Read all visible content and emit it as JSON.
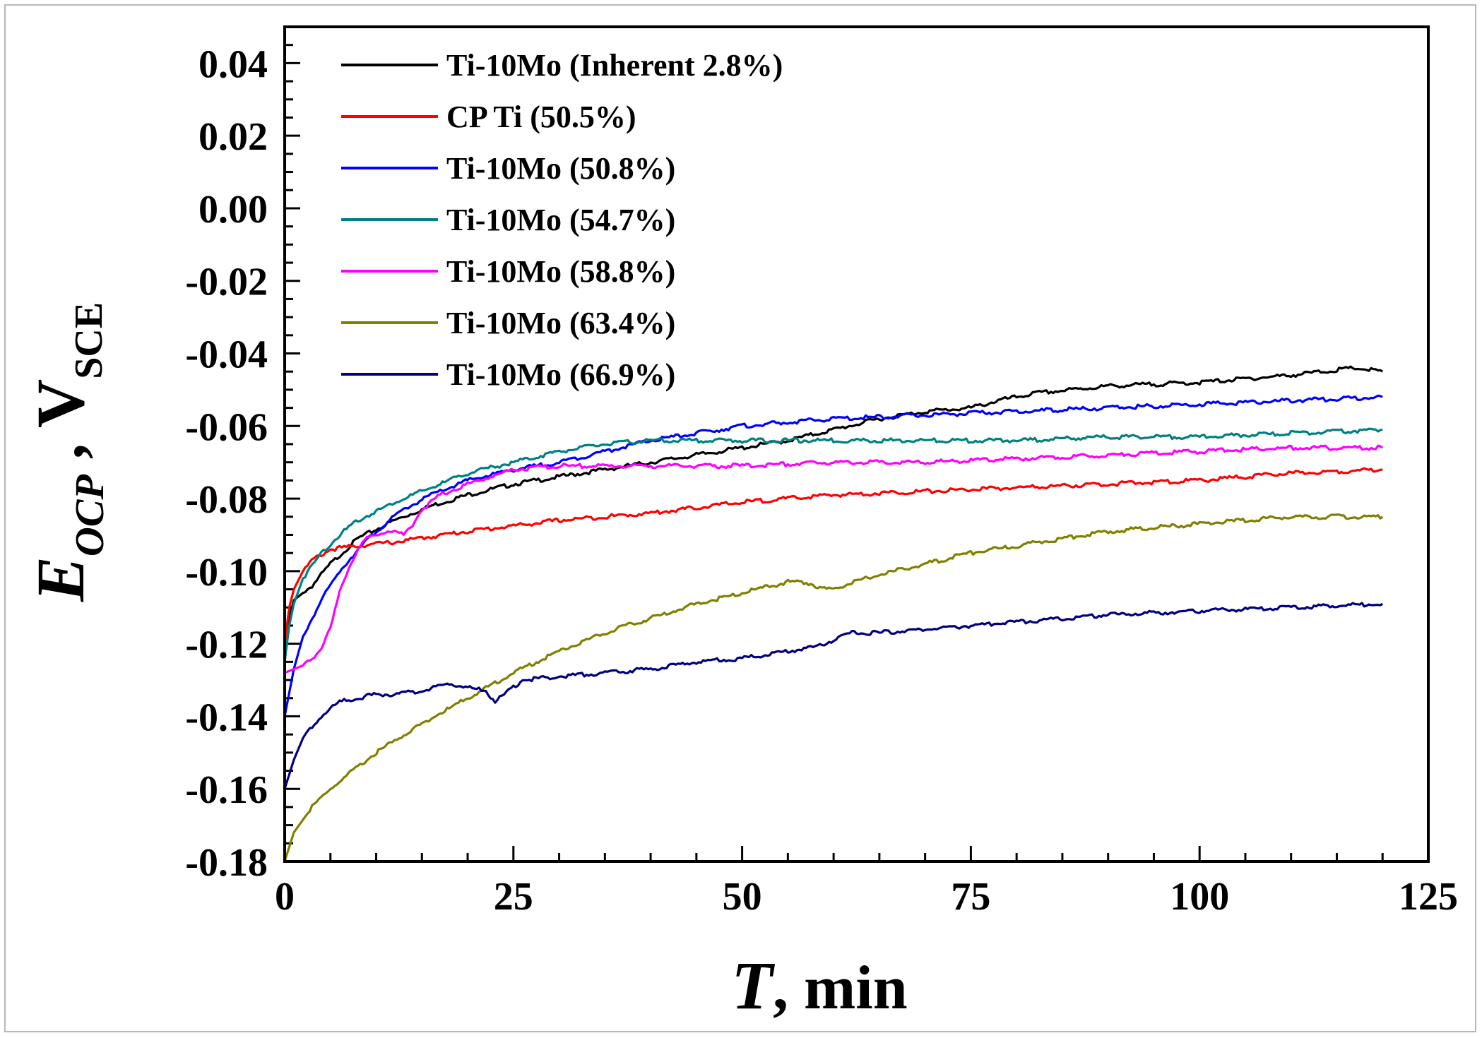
{
  "chart_data": {
    "type": "line",
    "title": "",
    "xlabel": {
      "symbol": "T",
      "rest": ", min"
    },
    "ylabel": {
      "symbol": "E",
      "symbol_sub": "OCP",
      "separator": " , ",
      "unit": "V",
      "unit_sub": "SCE"
    },
    "xlim": [
      0,
      125
    ],
    "ylim": [
      -0.18,
      0.05
    ],
    "x_ticks": [
      0,
      25,
      50,
      75,
      100,
      125
    ],
    "x_tick_labels": [
      "0",
      "25",
      "50",
      "75",
      "100",
      "125"
    ],
    "y_ticks": [
      0.04,
      0.02,
      0.0,
      -0.02,
      -0.04,
      -0.06,
      -0.08,
      -0.1,
      -0.12,
      -0.14,
      -0.16,
      -0.18
    ],
    "y_tick_labels": [
      "0.04",
      "0.02",
      "0.00",
      "-0.02",
      "-0.04",
      "-0.06",
      "-0.08",
      "-0.10",
      "-0.12",
      "-0.14",
      "-0.16",
      "-0.18"
    ],
    "grid": false,
    "legend_position": "top-left",
    "series": [
      {
        "name": "Ti-10Mo (Inherent 2.8%)",
        "color": "#000000",
        "x": [
          0,
          1,
          3,
          5,
          8,
          12,
          16,
          20,
          25,
          30,
          35,
          40,
          45,
          50,
          55,
          60,
          65,
          70,
          75,
          78,
          82,
          90,
          100,
          110,
          117,
          120
        ],
        "y": [
          -0.118,
          -0.108,
          -0.104,
          -0.098,
          -0.091,
          -0.086,
          -0.082,
          -0.079,
          -0.076,
          -0.074,
          -0.072,
          -0.07,
          -0.068,
          -0.066,
          -0.064,
          -0.061,
          -0.058,
          -0.056,
          -0.055,
          -0.053,
          -0.051,
          -0.049,
          -0.048,
          -0.046,
          -0.044,
          -0.045
        ]
      },
      {
        "name": "CP Ti (50.5%)",
        "color": "#ff0000",
        "x": [
          0,
          0.5,
          1,
          2,
          3,
          5,
          8,
          12,
          20,
          30,
          40,
          50,
          60,
          70,
          80,
          90,
          100,
          110,
          120
        ],
        "y": [
          -0.12,
          -0.11,
          -0.105,
          -0.1,
          -0.097,
          -0.094,
          -0.093,
          -0.092,
          -0.089,
          -0.086,
          -0.084,
          -0.081,
          -0.079,
          -0.078,
          -0.077,
          -0.076,
          -0.075,
          -0.073,
          -0.072
        ]
      },
      {
        "name": "Ti-10Mo (50.8%)",
        "color": "#0000ff",
        "x": [
          0,
          1,
          2,
          4,
          6,
          8,
          10,
          13,
          16,
          20,
          25,
          30,
          35,
          40,
          45,
          50,
          55,
          60,
          70,
          80,
          90,
          100,
          110,
          120
        ],
        "y": [
          -0.14,
          -0.127,
          -0.118,
          -0.108,
          -0.1,
          -0.094,
          -0.089,
          -0.083,
          -0.079,
          -0.075,
          -0.072,
          -0.07,
          -0.067,
          -0.064,
          -0.062,
          -0.06,
          -0.059,
          -0.058,
          -0.057,
          -0.056,
          -0.055,
          -0.054,
          -0.053,
          -0.052
        ]
      },
      {
        "name": "Ti-10Mo (54.7%)",
        "color": "#008080",
        "x": [
          0,
          0.5,
          1,
          2,
          4,
          6,
          8,
          12,
          16,
          20,
          25,
          30,
          35,
          40,
          45,
          50,
          55,
          60,
          70,
          80,
          90,
          100,
          110,
          120
        ],
        "y": [
          -0.125,
          -0.115,
          -0.109,
          -0.102,
          -0.095,
          -0.09,
          -0.086,
          -0.081,
          -0.077,
          -0.073,
          -0.07,
          -0.067,
          -0.065,
          -0.064,
          -0.064,
          -0.064,
          -0.064,
          -0.064,
          -0.064,
          -0.064,
          -0.063,
          -0.063,
          -0.062,
          -0.061
        ]
      },
      {
        "name": "Ti-10Mo (58.8%)",
        "color": "#ff00ff",
        "x": [
          0,
          1,
          2,
          3,
          4,
          5,
          6,
          7,
          8,
          9,
          10,
          11,
          12,
          13,
          14,
          15,
          17,
          20,
          25,
          30,
          40,
          50,
          60,
          70,
          80,
          90,
          100,
          110,
          120
        ],
        "y": [
          -0.128,
          -0.127,
          -0.126,
          -0.124,
          -0.121,
          -0.116,
          -0.106,
          -0.099,
          -0.094,
          -0.091,
          -0.09,
          -0.089,
          -0.089,
          -0.09,
          -0.087,
          -0.083,
          -0.079,
          -0.076,
          -0.072,
          -0.071,
          -0.071,
          -0.071,
          -0.07,
          -0.07,
          -0.069,
          -0.068,
          -0.067,
          -0.066,
          -0.066
        ]
      },
      {
        "name": "Ti-10Mo (63.4%)",
        "color": "#808000",
        "x": [
          0,
          1,
          3,
          5,
          10,
          15,
          20,
          25,
          30,
          35,
          40,
          45,
          50,
          55,
          57,
          59,
          60,
          61,
          65,
          70,
          75,
          80,
          90,
          100,
          110,
          115,
          120
        ],
        "y": [
          -0.18,
          -0.172,
          -0.165,
          -0.16,
          -0.15,
          -0.142,
          -0.135,
          -0.128,
          -0.122,
          -0.117,
          -0.113,
          -0.109,
          -0.106,
          -0.103,
          -0.103,
          -0.105,
          -0.105,
          -0.104,
          -0.101,
          -0.098,
          -0.095,
          -0.093,
          -0.089,
          -0.087,
          -0.085,
          -0.085,
          -0.085
        ]
      },
      {
        "name": "Ti-10Mo (66.9%)",
        "color": "#000080",
        "x": [
          0,
          1,
          2,
          4,
          6,
          8,
          10,
          12,
          15,
          18,
          20,
          22,
          23,
          24,
          26,
          30,
          40,
          45,
          50,
          55,
          58,
          60,
          62,
          65,
          70,
          80,
          90,
          100,
          110,
          120
        ],
        "y": [
          -0.16,
          -0.152,
          -0.146,
          -0.14,
          -0.136,
          -0.135,
          -0.134,
          -0.134,
          -0.133,
          -0.131,
          -0.132,
          -0.133,
          -0.136,
          -0.134,
          -0.13,
          -0.129,
          -0.127,
          -0.125,
          -0.124,
          -0.122,
          -0.121,
          -0.119,
          -0.117,
          -0.117,
          -0.116,
          -0.114,
          -0.112,
          -0.111,
          -0.11,
          -0.109
        ]
      }
    ]
  }
}
